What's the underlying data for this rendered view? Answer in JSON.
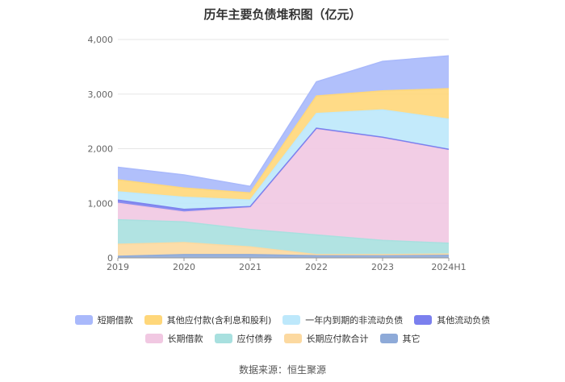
{
  "title": "历年主要负债堆积图（亿元）",
  "source": "数据来源：恒生聚源",
  "chart_data": {
    "type": "area",
    "stacked": true,
    "x": [
      "2019",
      "2020",
      "2021",
      "2022",
      "2023",
      "2024H1"
    ],
    "yticks": [
      "0",
      "1,000",
      "2,000",
      "3,000",
      "4,000"
    ],
    "ylim": [
      0,
      4000
    ],
    "grid": true,
    "legend_position": "bottom",
    "series": [
      {
        "name": "其它",
        "color": "#8eaad8",
        "values": [
          30,
          60,
          60,
          40,
          50,
          60
        ]
      },
      {
        "name": "长期应付款合计",
        "color": "#fcd9a0",
        "values": [
          220,
          220,
          140,
          20,
          10,
          10
        ]
      },
      {
        "name": "应付债券",
        "color": "#a8e0df",
        "values": [
          450,
          380,
          320,
          360,
          260,
          200
        ]
      },
      {
        "name": "长期借款",
        "color": "#f1c8e2",
        "values": [
          300,
          180,
          400,
          1940,
          1880,
          1710
        ]
      },
      {
        "name": "其他流动负债",
        "color": "#7b80ee",
        "values": [
          60,
          50,
          20,
          15,
          10,
          10
        ]
      },
      {
        "name": "一年内到期的非流动负债",
        "color": "#bde8fb",
        "values": [
          150,
          220,
          120,
          270,
          500,
          550
        ]
      },
      {
        "name": "其他应付款(含利息和股利)",
        "color": "#ffd77a",
        "values": [
          220,
          170,
          130,
          320,
          350,
          560
        ]
      },
      {
        "name": "短期借款",
        "color": "#a9b9fb",
        "values": [
          230,
          240,
          120,
          260,
          540,
          600
        ]
      }
    ],
    "legend_rows": [
      [
        "短期借款",
        "其他应付款(含利息和股利)",
        "一年内到期的非流动负债",
        "其他流动负债"
      ],
      [
        "长期借款",
        "应付债券",
        "长期应付款合计",
        "其它"
      ]
    ]
  }
}
